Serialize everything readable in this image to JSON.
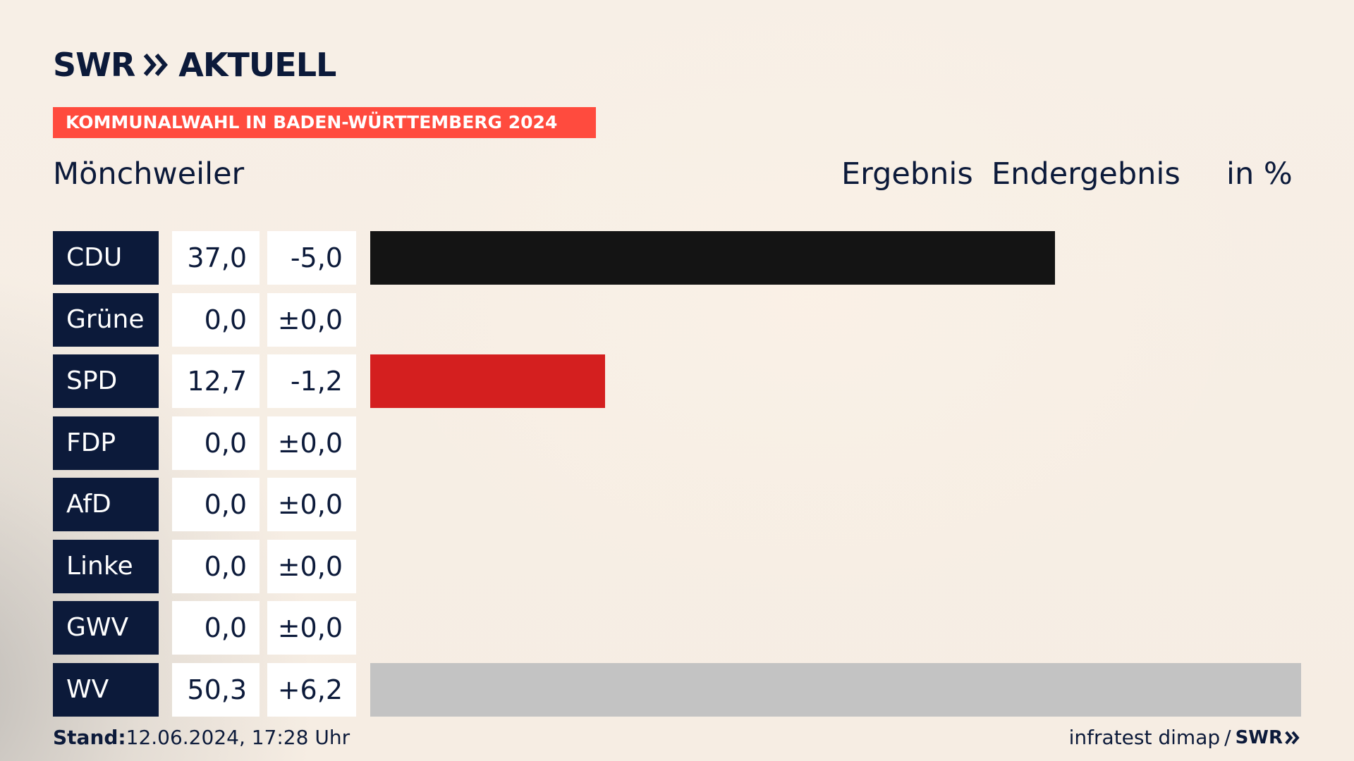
{
  "brand": {
    "name": "SWR",
    "product": "AKTUELL",
    "source": "infratest dimap",
    "separator": "/",
    "footer_brand": "SWR"
  },
  "topic": "KOMMUNALWAHL IN BADEN-WÜRTTEMBERG 2024",
  "place": "Mönchweiler",
  "headers": {
    "col1": "Ergebnis",
    "col2": "Endergebnis",
    "unit": "in %"
  },
  "footer": {
    "stand_label": "Stand:",
    "stand_value": "12.06.2024, 17:28 Uhr"
  },
  "colors": {
    "navy": "#0c1a3a",
    "accent": "#ff4b3e",
    "CDU": "#141414",
    "SPD": "#d41f1f",
    "WV": "#c3c3c3"
  },
  "chart_data": {
    "type": "bar",
    "orientation": "horizontal",
    "categories": [
      "CDU",
      "Grüne",
      "SPD",
      "FDP",
      "AfD",
      "Linke",
      "GWV",
      "WV"
    ],
    "values": [
      37.0,
      0.0,
      12.7,
      0.0,
      0.0,
      0.0,
      0.0,
      50.3
    ],
    "values_text": [
      "37,0",
      "0,0",
      "12,7",
      "0,0",
      "0,0",
      "0,0",
      "0,0",
      "50,3"
    ],
    "changes": [
      -5.0,
      0.0,
      -1.2,
      0.0,
      0.0,
      0.0,
      0.0,
      6.2
    ],
    "changes_text": [
      "-5,0",
      "±0,0",
      "-1,2",
      "±0,0",
      "±0,0",
      "±0,0",
      "±0,0",
      "+6,2"
    ],
    "colors": [
      "#141414",
      "#d41f1f",
      "#d41f1f",
      "#000000",
      "#000000",
      "#000000",
      "#000000",
      "#c3c3c3"
    ],
    "xlim": [
      0,
      50.3
    ],
    "unit": "%"
  }
}
